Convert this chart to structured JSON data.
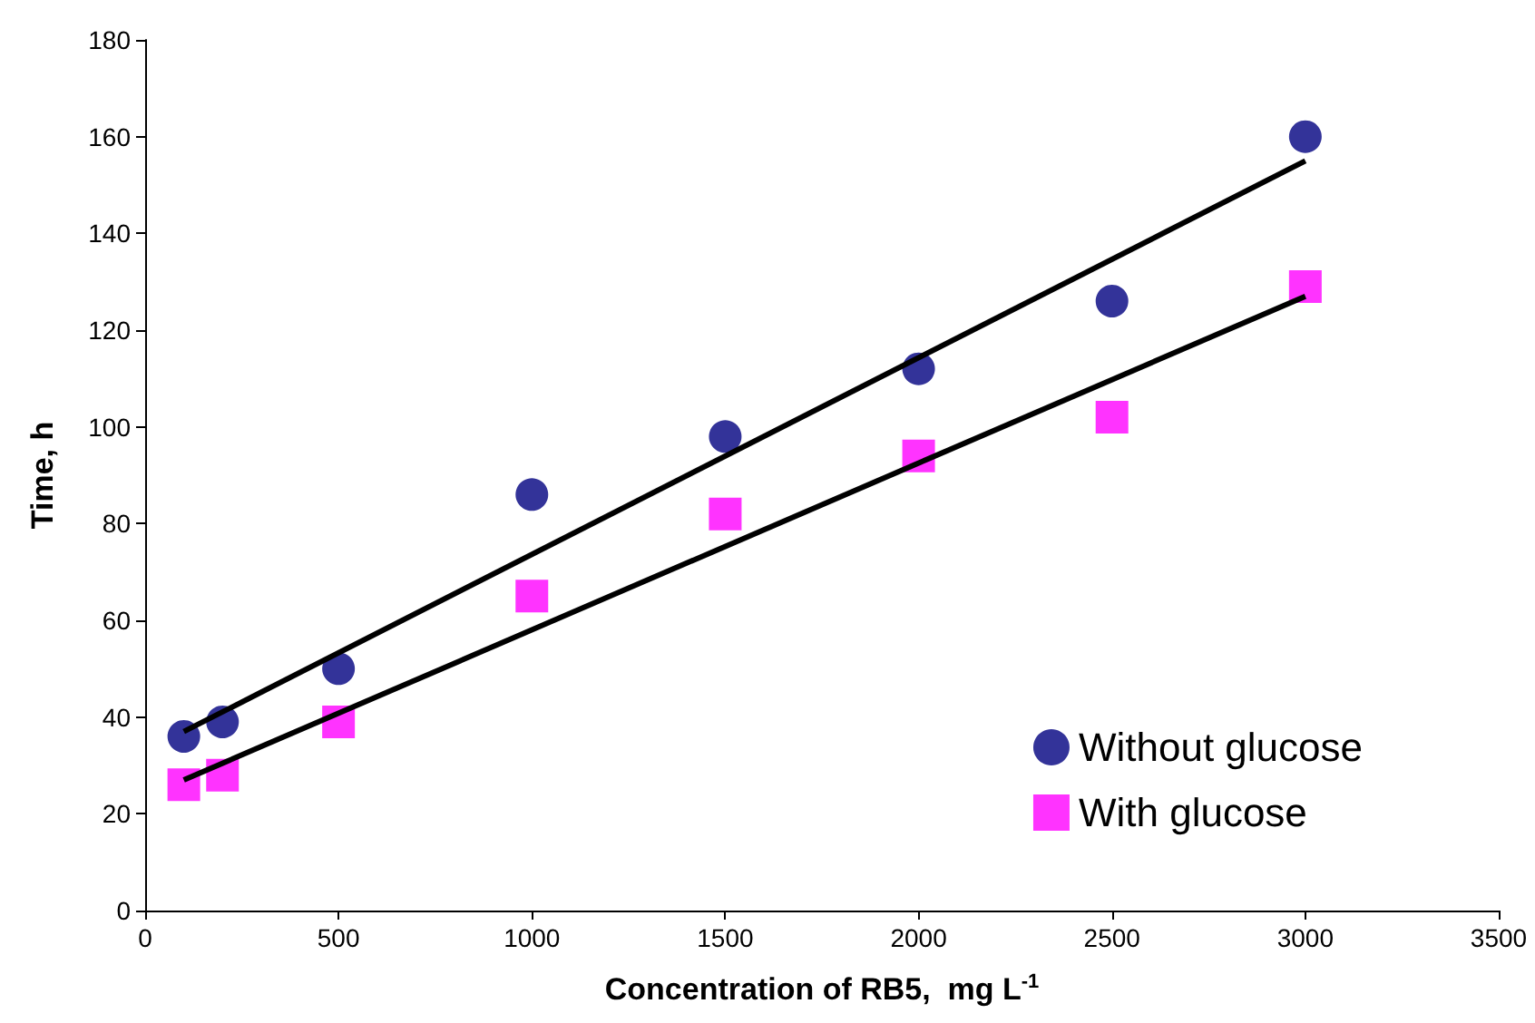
{
  "chart_data": {
    "type": "scatter",
    "xlabel": "Concentration of RB5,  mg L$^{-1}$",
    "ylabel": "Time, h",
    "xlim": [
      0,
      3500
    ],
    "xticks": [
      0,
      500,
      1000,
      1500,
      2000,
      2500,
      3000,
      3500
    ],
    "ylim": [
      0,
      180
    ],
    "yticks": [
      0,
      20,
      40,
      60,
      80,
      100,
      120,
      140,
      160,
      180
    ],
    "grid": false,
    "legend": "bottom right",
    "series": [
      {
        "name": "Without glucose",
        "color": "#000080",
        "marker": "circle",
        "x": [
          100,
          200,
          500,
          1000,
          1500,
          2000,
          2500,
          3000
        ],
        "values": [
          36,
          39,
          50,
          86,
          98,
          112,
          126,
          160
        ]
      },
      {
        "name": "With glucose",
        "color": "#ff00ff",
        "marker": "square",
        "x": [
          100,
          200,
          500,
          1000,
          1500,
          2000,
          2500,
          3000
        ],
        "values": [
          26,
          28,
          39,
          65,
          82,
          94,
          102,
          129
        ]
      },
      {
        "type": "line",
        "color": "#000000",
        "marker": "none",
        "x": [
          100,
          3000
        ],
        "values": [
          37,
          155
        ]
      },
      {
        "type": "line",
        "color": "#000000",
        "marker": "none",
        "x": [
          100,
          3000
        ],
        "values": [
          27,
          127
        ]
      }
    ]
  }
}
